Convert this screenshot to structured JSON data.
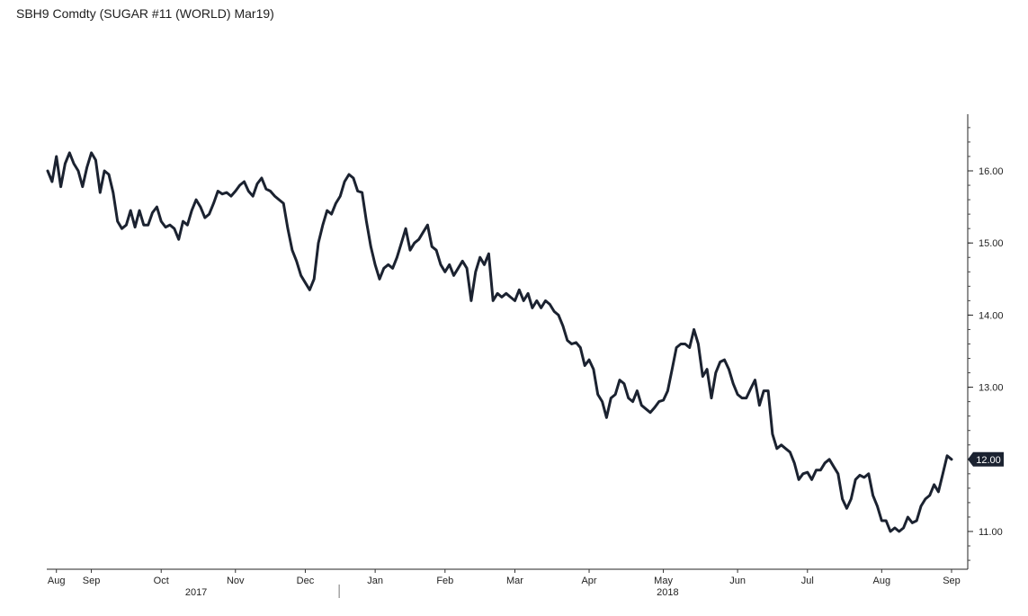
{
  "title": "SBH9 Comdty (SUGAR #11 (WORLD) Mar19)",
  "chart_data": {
    "type": "line",
    "series": [
      {
        "color": "#1b2230",
        "values": [
          [
            0,
            16.0
          ],
          [
            1,
            15.85
          ],
          [
            2,
            16.2
          ],
          [
            3,
            15.78
          ],
          [
            4,
            16.1
          ],
          [
            5,
            16.25
          ],
          [
            6,
            16.1
          ],
          [
            7,
            16.0
          ],
          [
            8,
            15.78
          ],
          [
            9,
            16.05
          ],
          [
            10,
            16.25
          ],
          [
            11,
            16.15
          ],
          [
            12,
            15.7
          ],
          [
            13,
            16.0
          ],
          [
            14,
            15.95
          ],
          [
            15,
            15.7
          ],
          [
            16,
            15.3
          ],
          [
            17,
            15.2
          ],
          [
            18,
            15.25
          ],
          [
            19,
            15.45
          ],
          [
            20,
            15.22
          ],
          [
            21,
            15.45
          ],
          [
            22,
            15.25
          ],
          [
            23,
            15.25
          ],
          [
            24,
            15.42
          ],
          [
            25,
            15.5
          ],
          [
            26,
            15.3
          ],
          [
            27,
            15.22
          ],
          [
            28,
            15.25
          ],
          [
            29,
            15.2
          ],
          [
            30,
            15.05
          ],
          [
            31,
            15.3
          ],
          [
            32,
            15.25
          ],
          [
            33,
            15.45
          ],
          [
            34,
            15.6
          ],
          [
            35,
            15.5
          ],
          [
            36,
            15.35
          ],
          [
            37,
            15.4
          ],
          [
            38,
            15.55
          ],
          [
            39,
            15.72
          ],
          [
            40,
            15.68
          ],
          [
            41,
            15.7
          ],
          [
            42,
            15.65
          ],
          [
            43,
            15.72
          ],
          [
            44,
            15.8
          ],
          [
            45,
            15.85
          ],
          [
            46,
            15.72
          ],
          [
            47,
            15.65
          ],
          [
            48,
            15.82
          ],
          [
            49,
            15.9
          ],
          [
            50,
            15.75
          ],
          [
            51,
            15.72
          ],
          [
            52,
            15.65
          ],
          [
            53,
            15.6
          ],
          [
            54,
            15.55
          ],
          [
            55,
            15.2
          ],
          [
            56,
            14.9
          ],
          [
            57,
            14.75
          ],
          [
            58,
            14.55
          ],
          [
            59,
            14.45
          ],
          [
            60,
            14.35
          ],
          [
            61,
            14.5
          ],
          [
            62,
            15.0
          ],
          [
            63,
            15.25
          ],
          [
            64,
            15.45
          ],
          [
            65,
            15.4
          ],
          [
            66,
            15.55
          ],
          [
            67,
            15.65
          ],
          [
            68,
            15.85
          ],
          [
            69,
            15.95
          ],
          [
            70,
            15.9
          ],
          [
            71,
            15.72
          ],
          [
            72,
            15.7
          ],
          [
            73,
            15.3
          ],
          [
            74,
            14.95
          ],
          [
            75,
            14.7
          ],
          [
            76,
            14.5
          ],
          [
            77,
            14.65
          ],
          [
            78,
            14.7
          ],
          [
            79,
            14.65
          ],
          [
            80,
            14.8
          ],
          [
            81,
            15.0
          ],
          [
            82,
            15.2
          ],
          [
            83,
            14.9
          ],
          [
            84,
            15.0
          ],
          [
            85,
            15.05
          ],
          [
            86,
            15.15
          ],
          [
            87,
            15.25
          ],
          [
            88,
            14.95
          ],
          [
            89,
            14.9
          ],
          [
            90,
            14.7
          ],
          [
            91,
            14.6
          ],
          [
            92,
            14.7
          ],
          [
            93,
            14.55
          ],
          [
            94,
            14.65
          ],
          [
            95,
            14.75
          ],
          [
            96,
            14.65
          ],
          [
            97,
            14.2
          ],
          [
            98,
            14.6
          ],
          [
            99,
            14.8
          ],
          [
            100,
            14.7
          ],
          [
            101,
            14.85
          ],
          [
            102,
            14.2
          ],
          [
            103,
            14.3
          ],
          [
            104,
            14.25
          ],
          [
            105,
            14.3
          ],
          [
            106,
            14.25
          ],
          [
            107,
            14.2
          ],
          [
            108,
            14.35
          ],
          [
            109,
            14.2
          ],
          [
            110,
            14.3
          ],
          [
            111,
            14.1
          ],
          [
            112,
            14.2
          ],
          [
            113,
            14.1
          ],
          [
            114,
            14.2
          ],
          [
            115,
            14.15
          ],
          [
            116,
            14.05
          ],
          [
            117,
            14.0
          ],
          [
            118,
            13.85
          ],
          [
            119,
            13.65
          ],
          [
            120,
            13.6
          ],
          [
            121,
            13.62
          ],
          [
            122,
            13.55
          ],
          [
            123,
            13.3
          ],
          [
            124,
            13.38
          ],
          [
            125,
            13.25
          ],
          [
            126,
            12.9
          ],
          [
            127,
            12.8
          ],
          [
            128,
            12.58
          ],
          [
            129,
            12.85
          ],
          [
            130,
            12.9
          ],
          [
            131,
            13.1
          ],
          [
            132,
            13.05
          ],
          [
            133,
            12.85
          ],
          [
            134,
            12.8
          ],
          [
            135,
            12.95
          ],
          [
            136,
            12.75
          ],
          [
            137,
            12.7
          ],
          [
            138,
            12.65
          ],
          [
            139,
            12.72
          ],
          [
            140,
            12.8
          ],
          [
            141,
            12.82
          ],
          [
            142,
            12.95
          ],
          [
            143,
            13.25
          ],
          [
            144,
            13.55
          ],
          [
            145,
            13.6
          ],
          [
            146,
            13.6
          ],
          [
            147,
            13.55
          ],
          [
            148,
            13.8
          ],
          [
            149,
            13.6
          ],
          [
            150,
            13.15
          ],
          [
            151,
            13.25
          ],
          [
            152,
            12.85
          ],
          [
            153,
            13.2
          ],
          [
            154,
            13.35
          ],
          [
            155,
            13.38
          ],
          [
            156,
            13.25
          ],
          [
            157,
            13.05
          ],
          [
            158,
            12.9
          ],
          [
            159,
            12.85
          ],
          [
            160,
            12.85
          ],
          [
            161,
            12.98
          ],
          [
            162,
            13.1
          ],
          [
            163,
            12.75
          ],
          [
            164,
            12.95
          ],
          [
            165,
            12.95
          ],
          [
            166,
            12.35
          ],
          [
            167,
            12.15
          ],
          [
            168,
            12.2
          ],
          [
            169,
            12.15
          ],
          [
            170,
            12.1
          ],
          [
            171,
            11.95
          ],
          [
            172,
            11.72
          ],
          [
            173,
            11.8
          ],
          [
            174,
            11.82
          ],
          [
            175,
            11.72
          ],
          [
            176,
            11.85
          ],
          [
            177,
            11.85
          ],
          [
            178,
            11.95
          ],
          [
            179,
            12.0
          ],
          [
            180,
            11.9
          ],
          [
            181,
            11.8
          ],
          [
            182,
            11.45
          ],
          [
            183,
            11.32
          ],
          [
            184,
            11.45
          ],
          [
            185,
            11.72
          ],
          [
            186,
            11.78
          ],
          [
            187,
            11.75
          ],
          [
            188,
            11.8
          ],
          [
            189,
            11.5
          ],
          [
            190,
            11.35
          ],
          [
            191,
            11.15
          ],
          [
            192,
            11.15
          ],
          [
            193,
            11.0
          ],
          [
            194,
            11.05
          ],
          [
            195,
            11.0
          ],
          [
            196,
            11.05
          ],
          [
            197,
            11.2
          ],
          [
            198,
            11.12
          ],
          [
            199,
            11.15
          ],
          [
            200,
            11.35
          ],
          [
            201,
            11.45
          ],
          [
            202,
            11.5
          ],
          [
            203,
            11.65
          ],
          [
            204,
            11.55
          ],
          [
            205,
            11.8
          ],
          [
            206,
            12.05
          ],
          [
            207,
            12.0
          ]
        ]
      }
    ],
    "ylim": [
      10.5,
      16.8
    ],
    "ylabel": "",
    "xlabel": "",
    "yticks": [
      "16.00",
      "15.00",
      "14.00",
      "13.00",
      "12.00",
      "11.00"
    ],
    "ytick_values": [
      16,
      15,
      14,
      13,
      12,
      11
    ],
    "xticks": [
      {
        "label": "Aug",
        "x": 2
      },
      {
        "label": "Sep",
        "x": 10
      },
      {
        "label": "Oct",
        "x": 26
      },
      {
        "label": "Nov",
        "x": 43
      },
      {
        "label": "Dec",
        "x": 59
      },
      {
        "label": "Jan",
        "x": 75
      },
      {
        "label": "Feb",
        "x": 91
      },
      {
        "label": "Mar",
        "x": 107
      },
      {
        "label": "Apr",
        "x": 124
      },
      {
        "label": "May",
        "x": 141
      },
      {
        "label": "Jun",
        "x": 158
      },
      {
        "label": "Jul",
        "x": 174
      },
      {
        "label": "Aug",
        "x": 191
      },
      {
        "label": "Sep",
        "x": 207
      }
    ],
    "years": [
      {
        "label": "2017",
        "x": 34
      },
      {
        "label": "2018",
        "x": 142
      }
    ],
    "last_value_label": "12.00",
    "grid": false,
    "y_axis_side": "right"
  }
}
